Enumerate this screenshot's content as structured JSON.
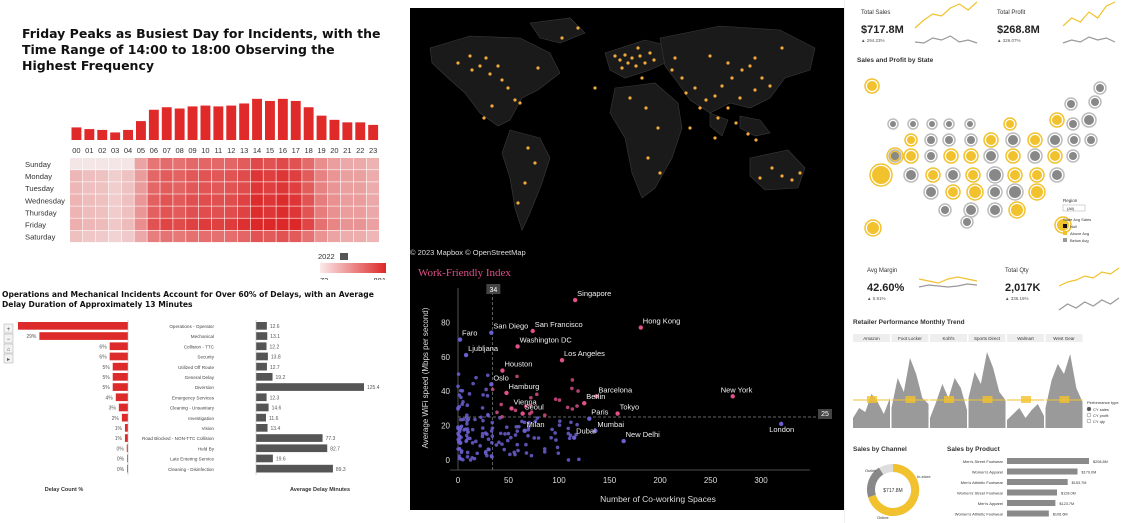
{
  "incidents": {
    "title": "Friday Peaks as Busiest Day for Incidents, with the Time Range of 14:00 to 18:00 Observing the Highest Frequency",
    "hours": [
      "00",
      "01",
      "02",
      "03",
      "04",
      "05",
      "06",
      "07",
      "08",
      "09",
      "10",
      "11",
      "12",
      "13",
      "14",
      "15",
      "16",
      "17",
      "18",
      "19",
      "20",
      "21",
      "22",
      "23"
    ],
    "hour_totals": [
      0.3,
      0.26,
      0.24,
      0.18,
      0.24,
      0.45,
      0.72,
      0.78,
      0.75,
      0.8,
      0.82,
      0.8,
      0.82,
      0.87,
      0.98,
      0.93,
      0.98,
      0.93,
      0.78,
      0.58,
      0.48,
      0.42,
      0.42,
      0.36
    ],
    "days": [
      "Sunday",
      "Monday",
      "Tuesday",
      "Wednesday",
      "Thursday",
      "Friday",
      "Saturday"
    ],
    "legend_year": "2022",
    "legend_min": "73",
    "legend_max": "881",
    "color": "#e02a2a"
  },
  "delays": {
    "title": "Operations and Mechanical Incidents Account for Over 60% of Delays, with an Average Delay Duration of Approximately 13 Minutes",
    "categories": [
      "Operations - Operator",
      "Mechanical",
      "Collision - TTC",
      "Security",
      "Utilized Off Route",
      "General Delay",
      "Diversion",
      "Emergency Services",
      "Cleaning - Unsanitary",
      "Investigation",
      "Vision",
      "Road Blocked - NON-TTC Collision",
      "Held By",
      "Late Entering Service",
      "Cleaning - Disinfection"
    ],
    "pct_labels": [
      "",
      "29%",
      "6%",
      "6%",
      "5%",
      "5%",
      "5%",
      "4%",
      "3%",
      "2%",
      "1%",
      "1%",
      "0%",
      "0%",
      "0%"
    ],
    "pct_values": [
      36,
      29,
      6,
      6,
      5,
      5,
      5,
      4,
      3,
      2,
      1,
      1,
      0.4,
      0.3,
      0.3
    ],
    "avg_labels": [
      "12.6",
      "13.1",
      "12.2",
      "13.8",
      "12.7",
      "19.2",
      "125.4",
      "12.3",
      "14.6",
      "11.6",
      "13.4",
      "77.3",
      "82.7",
      "19.6",
      "89.3"
    ],
    "avg_values": [
      12.6,
      13.1,
      12.2,
      13.8,
      12.7,
      19.2,
      125.4,
      12.3,
      14.6,
      11.6,
      13.4,
      77.3,
      82.7,
      19.6,
      89.3
    ],
    "x_label_left": "Delay Count %",
    "x_label_right": "Average Delay Minutes"
  },
  "map": {
    "attribution": "© 2023 Mapbox © OpenStreetMap"
  },
  "wfi": {
    "title": "Work-Friendly Index",
    "xlabel": "Number of Co-working Spaces",
    "ylabel": "Average WiFi speed (Mbps per second)",
    "x_ref": "34",
    "y_ref": "25",
    "accent": "#e0508a",
    "cities": [
      {
        "name": "Singapore",
        "x": 116,
        "y": 93
      },
      {
        "name": "Faro",
        "x": 2,
        "y": 70
      },
      {
        "name": "San Diego",
        "x": 33,
        "y": 74
      },
      {
        "name": "San Francisco",
        "x": 74,
        "y": 75
      },
      {
        "name": "Hong Kong",
        "x": 181,
        "y": 77
      },
      {
        "name": "Washington DC",
        "x": 59,
        "y": 66
      },
      {
        "name": "Ljubljana",
        "x": 8,
        "y": 61
      },
      {
        "name": "Houston",
        "x": 44,
        "y": 52
      },
      {
        "name": "Los Angeles",
        "x": 103,
        "y": 58
      },
      {
        "name": "Oslo",
        "x": 33,
        "y": 44
      },
      {
        "name": "Hamburg",
        "x": 48,
        "y": 39
      },
      {
        "name": "Vienna",
        "x": 53,
        "y": 30
      },
      {
        "name": "Barcelona",
        "x": 137,
        "y": 37
      },
      {
        "name": "Berlin",
        "x": 125,
        "y": 33
      },
      {
        "name": "New York",
        "x": 272,
        "y": 37
      },
      {
        "name": "Seoul",
        "x": 64,
        "y": 27
      },
      {
        "name": "Paris",
        "x": 130,
        "y": 24
      },
      {
        "name": "Tokyo",
        "x": 158,
        "y": 27
      },
      {
        "name": "London",
        "x": 320,
        "y": 21
      },
      {
        "name": "Milan",
        "x": 66,
        "y": 17
      },
      {
        "name": "Mumbai",
        "x": 136,
        "y": 17
      },
      {
        "name": "Dubai",
        "x": 115,
        "y": 13
      },
      {
        "name": "New Delhi",
        "x": 164,
        "y": 11
      }
    ],
    "x_ticks": [
      "0",
      "50",
      "100",
      "150",
      "200",
      "250",
      "300"
    ],
    "y_ticks": [
      "0",
      "20",
      "40",
      "60",
      "80"
    ]
  },
  "retail": {
    "total_sales_label": "Total Sales",
    "total_sales_value": "$717.8M",
    "total_sales_delta": "▲ 294.23%",
    "total_profit_label": "Total Profit",
    "total_profit_value": "$268.8M",
    "total_profit_delta": "▲ 326.07%",
    "state_title": "Sales and Profit by State",
    "region_label": "Region",
    "region_value": "(All)",
    "legend_title": "State Avg Sales",
    "legend_items": [
      "Null",
      "Above Avg",
      "Below Avg"
    ],
    "avg_margin_label": "Avg Margin",
    "avg_margin_value": "42.60%",
    "avg_margin_delta": "▲ 5.91%",
    "total_qty_label": "Total Qty",
    "total_qty_value": "2,017K",
    "total_qty_delta": "▲ 336.16%",
    "trend_title": "Retailer Performance Monthly Trend",
    "retailers": [
      "Amazon",
      "Foot Locker",
      "Kohl's",
      "Sports Direct",
      "Walmart",
      "West Gear"
    ],
    "perf_label": "Performance type",
    "perf_options": [
      "CY sales",
      "CY profit",
      "CY qty"
    ],
    "channel_title": "Sales by Channel",
    "channel_labels": [
      "Outlet",
      "In-store",
      "Online"
    ],
    "channel_center": "$717.8M",
    "product_title": "Sales by Product",
    "products": [
      "Men's Street Footwear",
      "Women's Apparel",
      "Men's Athletic Footwear",
      "Women's Street Footwear",
      "Men's Apparel",
      "Women's Athletic Footwear"
    ],
    "product_values": [
      "$208.8M",
      "$179.0M",
      "$153.7M",
      "$128.0M",
      "$123.7M",
      "$106.6M"
    ],
    "accent": "#f2c22e"
  }
}
